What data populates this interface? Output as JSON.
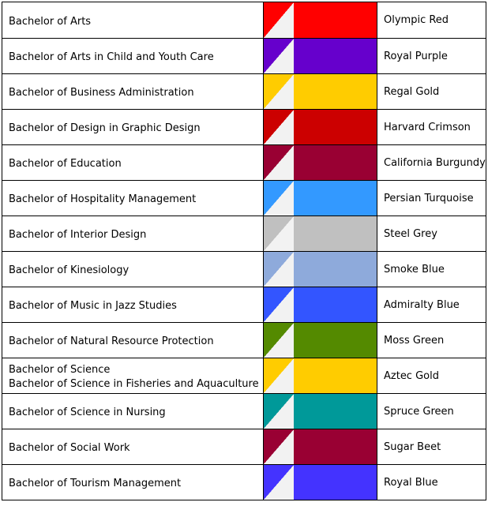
{
  "rows": [
    {
      "degree": [
        "Bachelor of Arts"
      ],
      "color_name": "Olympic Red",
      "color": "#ff0000"
    },
    {
      "degree": [
        "Bachelor of Arts in Child and Youth Care"
      ],
      "color_name": "Royal Purple",
      "color": "#6600cc"
    },
    {
      "degree": [
        "Bachelor of Business Administration"
      ],
      "color_name": "Regal Gold",
      "color": "#ffcc00"
    },
    {
      "degree": [
        "Bachelor of Design in Graphic Design"
      ],
      "color_name": "Harvard Crimson",
      "color": "#cc0000"
    },
    {
      "degree": [
        "Bachelor of Education"
      ],
      "color_name": "California Burgundy",
      "color": "#990033"
    },
    {
      "degree": [
        "Bachelor of Hospitality Management"
      ],
      "color_name": "Persian Turquoise",
      "color": "#3399ff"
    },
    {
      "degree": [
        "Bachelor of Interior Design"
      ],
      "color_name": "Steel Grey",
      "color": "#c0c0c0"
    },
    {
      "degree": [
        "Bachelor of Kinesiology"
      ],
      "color_name": "Smoke Blue",
      "color": "#8eaadb"
    },
    {
      "degree": [
        "Bachelor of Music in Jazz Studies"
      ],
      "color_name": "Admiralty Blue",
      "color": "#3355ff"
    },
    {
      "degree": [
        "Bachelor of Natural Resource Protection"
      ],
      "color_name": "Moss Green",
      "color": "#548a00"
    },
    {
      "degree": [
        "Bachelor of Science",
        "Bachelor of Science in Fisheries and Aquaculture"
      ],
      "color_name": "Aztec Gold",
      "color": "#ffcc00"
    },
    {
      "degree": [
        "Bachelor of Science in Nursing"
      ],
      "color_name": "Spruce Green",
      "color": "#009999"
    },
    {
      "degree": [
        "Bachelor of Social Work"
      ],
      "color_name": "Sugar Beet",
      "color": "#990033"
    },
    {
      "degree": [
        "Bachelor of Tourism Management"
      ],
      "color_name": "Royal Blue",
      "color": "#4433ff"
    }
  ]
}
